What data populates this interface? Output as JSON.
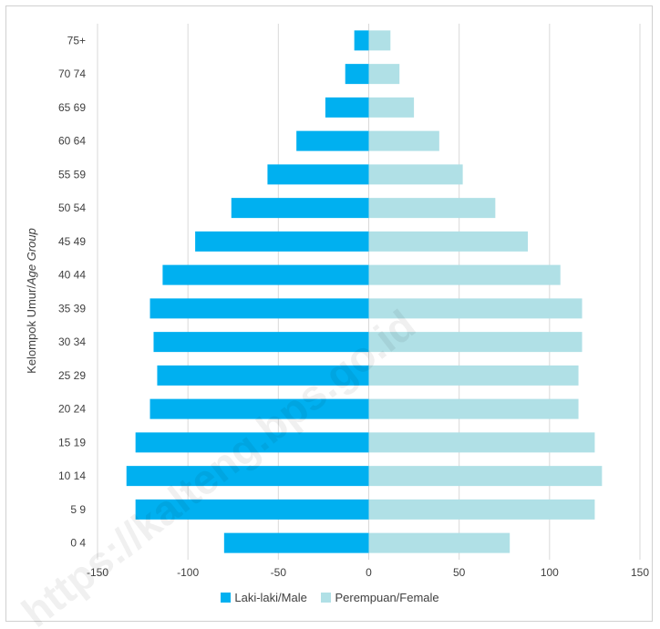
{
  "chart_data": {
    "type": "bar",
    "orientation": "horizontal",
    "categories": [
      "0 4",
      "5 9",
      "10 14",
      "15 19",
      "20 24",
      "25 29",
      "30 34",
      "35 39",
      "40 44",
      "45 49",
      "50 54",
      "55 59",
      "60 64",
      "65 69",
      "70 74",
      "75+"
    ],
    "series": [
      {
        "name": "Laki-laki/Male",
        "color": "#00b0f0",
        "values": [
          -80,
          -129,
          -134,
          -129,
          -121,
          -117,
          -119,
          -121,
          -114,
          -96,
          -76,
          -56,
          -40,
          -24,
          -13,
          -8
        ]
      },
      {
        "name": "Perempuan/Female",
        "color": "#b0e0e6",
        "values": [
          78,
          125,
          129,
          125,
          116,
          116,
          118,
          118,
          106,
          88,
          70,
          52,
          39,
          25,
          17,
          12
        ]
      }
    ],
    "xticks": [
      "-150",
      "-100",
      "-50",
      "0",
      "50",
      "100",
      "150"
    ],
    "xlim": [
      -150,
      150
    ],
    "ylabel_main": "Kelompok Umur/",
    "ylabel_italic": "Age Group",
    "grid": "vertical",
    "legend_position": "bottom"
  },
  "watermark": "https://kalteng.bps.go.id"
}
